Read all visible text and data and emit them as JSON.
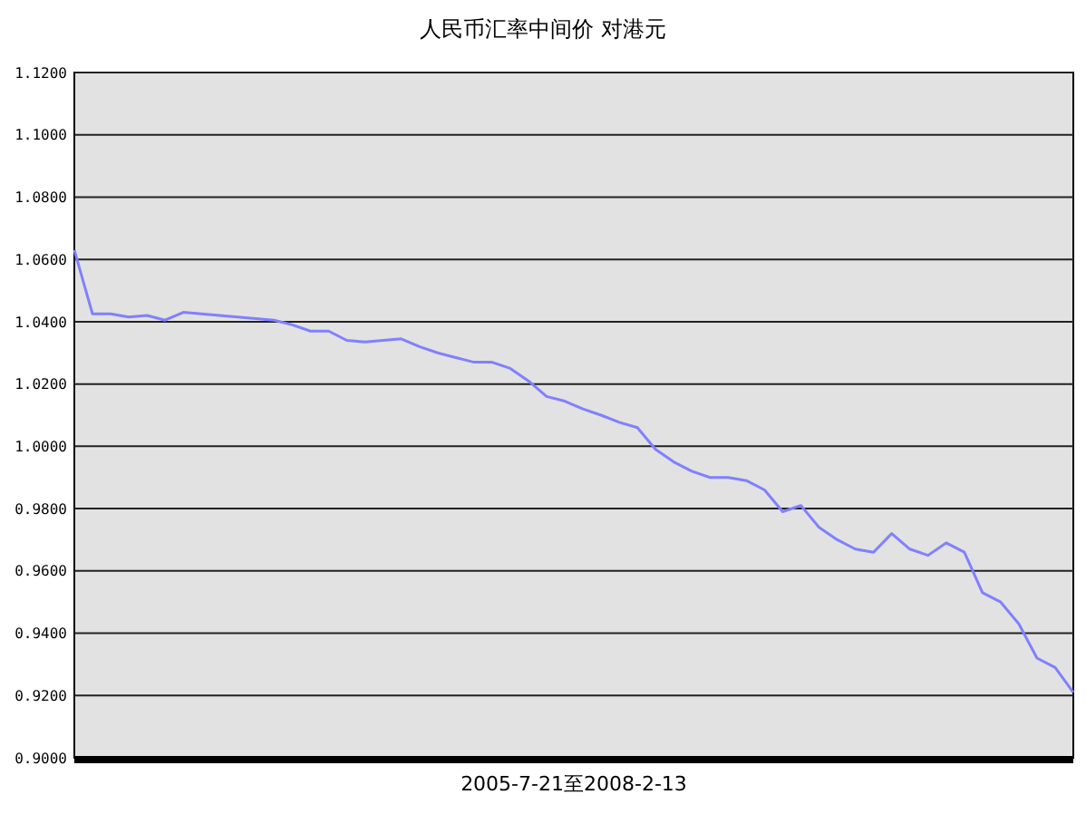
{
  "chart_data": {
    "type": "line",
    "title": "人民币汇率中间价  对港元",
    "xlabel": "2005-7-21至2008-2-13",
    "categories": [
      null,
      null,
      null,
      null,
      null,
      null,
      null,
      null,
      null,
      null,
      null,
      null,
      null,
      null,
      null,
      null,
      null,
      null,
      null,
      null,
      null,
      null,
      null,
      null,
      null,
      null,
      null,
      null,
      null,
      null,
      null,
      null,
      null,
      null,
      null,
      null,
      null,
      null,
      null,
      null,
      null,
      null,
      null,
      null,
      null,
      null,
      null,
      null,
      null,
      null,
      null,
      null,
      null,
      null,
      null,
      null
    ],
    "series": [
      {
        "color": "#8080ff",
        "values": [
          1.063,
          1.0425,
          1.0425,
          1.0415,
          1.042,
          1.0405,
          1.043,
          1.0425,
          1.042,
          1.0415,
          1.041,
          1.0405,
          1.039,
          1.037,
          1.037,
          1.034,
          1.0335,
          1.034,
          1.0345,
          1.032,
          1.03,
          1.0285,
          1.027,
          1.027,
          1.025,
          1.021,
          1.016,
          1.0145,
          1.012,
          1.01,
          1.0077,
          1.006,
          0.999,
          0.995,
          0.992,
          0.99,
          0.99,
          0.989,
          0.986,
          0.979,
          0.981,
          0.974,
          0.97,
          0.967,
          0.966,
          0.972,
          0.967,
          0.965,
          0.969,
          0.966,
          0.953,
          0.95,
          0.943,
          0.932,
          0.929,
          0.921
        ]
      }
    ],
    "ylim": [
      0.9,
      1.12
    ],
    "yticks": [
      {
        "value": 0.9,
        "label": "0.9000"
      },
      {
        "value": 0.92,
        "label": "0.9200"
      },
      {
        "value": 0.94,
        "label": "0.9400"
      },
      {
        "value": 0.96,
        "label": "0.9600"
      },
      {
        "value": 0.98,
        "label": "0.9800"
      },
      {
        "value": 1.0,
        "label": "1.0000"
      },
      {
        "value": 1.02,
        "label": "1.0200"
      },
      {
        "value": 1.04,
        "label": "1.0400"
      },
      {
        "value": 1.06,
        "label": "1.0600"
      },
      {
        "value": 1.08,
        "label": "1.0800"
      },
      {
        "value": 1.1,
        "label": "1.1000"
      },
      {
        "value": 1.12,
        "label": "1.1200"
      }
    ],
    "grid": "y",
    "marker": "none",
    "line_style": "solid"
  }
}
